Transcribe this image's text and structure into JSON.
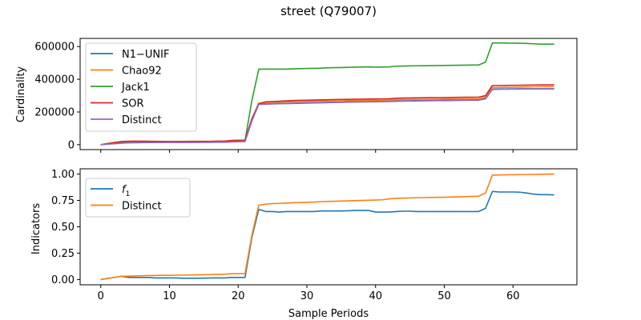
{
  "chart_data": [
    {
      "type": "line",
      "title": "street (Q79007)",
      "xlabel": "",
      "ylabel": "Cardinality",
      "xlim": [
        -3,
        69.3
      ],
      "ylim": [
        -30000,
        650000
      ],
      "xticks": [
        0,
        10,
        20,
        30,
        40,
        50,
        60
      ],
      "yticks": [
        0,
        200000,
        400000,
        600000
      ],
      "ytick_labels": [
        "0",
        "200000",
        "400000",
        "600000"
      ],
      "legend_position": "upper left",
      "series": [
        {
          "name": "N1−UNIF",
          "color": "#1f77b4",
          "x": [
            0,
            1,
            2,
            3,
            4,
            5,
            6,
            7,
            8,
            9,
            10,
            11,
            12,
            13,
            14,
            15,
            16,
            17,
            18,
            19,
            20,
            21,
            22,
            23,
            24,
            25,
            26,
            27,
            28,
            29,
            30,
            31,
            32,
            33,
            34,
            35,
            36,
            37,
            38,
            39,
            40,
            41,
            42,
            43,
            44,
            45,
            46,
            47,
            48,
            49,
            50,
            51,
            52,
            53,
            54,
            55,
            56,
            57,
            58,
            59,
            60,
            61,
            62,
            63,
            64,
            65,
            66
          ],
          "values": [
            0,
            4000,
            8000,
            12000,
            14000,
            15000,
            15500,
            15700,
            15900,
            16000,
            16100,
            16200,
            16300,
            16400,
            16500,
            16600,
            17000,
            17500,
            18000,
            20000,
            21000,
            22000,
            150000,
            248000,
            250000,
            251000,
            252000,
            253000,
            254000,
            255000,
            256000,
            257000,
            258000,
            259000,
            260000,
            261000,
            262000,
            263000,
            263500,
            264000,
            264500,
            265000,
            266000,
            267000,
            268000,
            269000,
            270000,
            270500,
            271000,
            271500,
            272000,
            272500,
            273000,
            273500,
            274000,
            274500,
            282000,
            340000,
            341000,
            341000,
            341500,
            342000,
            342000,
            342000,
            342000,
            342000,
            342000
          ]
        },
        {
          "name": "Chao92",
          "color": "#ff7f0e",
          "x": [
            0,
            1,
            2,
            3,
            4,
            5,
            6,
            7,
            8,
            9,
            10,
            11,
            12,
            13,
            14,
            15,
            16,
            17,
            18,
            19,
            20,
            21,
            22,
            23,
            24,
            25,
            26,
            27,
            28,
            29,
            30,
            31,
            32,
            33,
            34,
            35,
            36,
            37,
            38,
            39,
            40,
            41,
            42,
            43,
            44,
            45,
            46,
            47,
            48,
            49,
            50,
            51,
            52,
            53,
            54,
            55,
            56,
            57,
            58,
            59,
            60,
            61,
            62,
            63,
            64,
            65,
            66
          ],
          "values": [
            0,
            5000,
            10000,
            15000,
            17000,
            18000,
            18000,
            17500,
            17000,
            16800,
            16800,
            16900,
            17000,
            17000,
            17100,
            17200,
            17500,
            18000,
            18500,
            21000,
            22000,
            23000,
            155000,
            255000,
            258000,
            260000,
            261000,
            262000,
            263000,
            264000,
            265000,
            266000,
            267000,
            268000,
            268500,
            269000,
            269500,
            270000,
            270500,
            271000,
            271500,
            272000,
            274000,
            275000,
            276000,
            276500,
            277000,
            277500,
            278000,
            278500,
            279000,
            279500,
            280000,
            280500,
            281000,
            281500,
            290000,
            350000,
            350000,
            350500,
            351000,
            352000,
            353000,
            354000,
            355000,
            355000,
            355000
          ]
        },
        {
          "name": "Jack1",
          "color": "#2ca02c",
          "x": [
            0,
            1,
            2,
            3,
            4,
            5,
            6,
            7,
            8,
            9,
            10,
            11,
            12,
            13,
            14,
            15,
            16,
            17,
            18,
            19,
            20,
            21,
            22,
            23,
            24,
            25,
            26,
            27,
            28,
            29,
            30,
            31,
            32,
            33,
            34,
            35,
            36,
            37,
            38,
            39,
            40,
            41,
            42,
            43,
            44,
            45,
            46,
            47,
            48,
            49,
            50,
            51,
            52,
            53,
            54,
            55,
            56,
            57,
            58,
            59,
            60,
            61,
            62,
            63,
            64,
            65,
            66
          ],
          "values": [
            0,
            6000,
            12000,
            17000,
            19000,
            20000,
            20000,
            19500,
            19000,
            18800,
            18800,
            18900,
            19000,
            19000,
            19100,
            19200,
            19600,
            20000,
            20500,
            24000,
            25000,
            26000,
            270000,
            462000,
            462000,
            462000,
            462000,
            462000,
            464000,
            465000,
            466000,
            467000,
            468000,
            470000,
            471000,
            472000,
            473000,
            474000,
            475000,
            476000,
            474000,
            475000,
            476000,
            480000,
            481000,
            482000,
            482500,
            483000,
            483500,
            484000,
            484500,
            485000,
            486000,
            486500,
            487000,
            487500,
            505000,
            622000,
            622000,
            621500,
            621000,
            620500,
            619000,
            617000,
            615000,
            615000,
            615000
          ]
        },
        {
          "name": "SOR",
          "color": "#d62728",
          "x": [
            0,
            1,
            2,
            3,
            4,
            5,
            6,
            7,
            8,
            9,
            10,
            11,
            12,
            13,
            14,
            15,
            16,
            17,
            18,
            19,
            20,
            21,
            22,
            23,
            24,
            25,
            26,
            27,
            28,
            29,
            30,
            31,
            32,
            33,
            34,
            35,
            36,
            37,
            38,
            39,
            40,
            41,
            42,
            43,
            44,
            45,
            46,
            47,
            48,
            49,
            50,
            51,
            52,
            53,
            54,
            55,
            56,
            57,
            58,
            59,
            60,
            61,
            62,
            63,
            64,
            65,
            66
          ],
          "values": [
            0,
            7000,
            14000,
            19000,
            21000,
            22000,
            21500,
            21000,
            20500,
            20000,
            20000,
            20100,
            20200,
            20300,
            20400,
            20500,
            20800,
            21500,
            22000,
            26000,
            27000,
            28000,
            160000,
            250000,
            262000,
            264000,
            266000,
            268000,
            270000,
            271000,
            272000,
            273000,
            274000,
            275000,
            276000,
            277000,
            277500,
            278000,
            278500,
            279000,
            279500,
            280000,
            281000,
            284000,
            285000,
            286000,
            286500,
            287000,
            287500,
            288000,
            288500,
            289000,
            289500,
            290000,
            290500,
            291000,
            300000,
            362000,
            362000,
            362500,
            363000,
            363500,
            364000,
            365000,
            366000,
            366000,
            366000
          ]
        },
        {
          "name": "Distinct",
          "color": "#9467bd",
          "x": [
            0,
            1,
            2,
            3,
            4,
            5,
            6,
            7,
            8,
            9,
            10,
            11,
            12,
            13,
            14,
            15,
            16,
            17,
            18,
            19,
            20,
            21,
            22,
            23,
            24,
            25,
            26,
            27,
            28,
            29,
            30,
            31,
            32,
            33,
            34,
            35,
            36,
            37,
            38,
            39,
            40,
            41,
            42,
            43,
            44,
            45,
            46,
            47,
            48,
            49,
            50,
            51,
            52,
            53,
            54,
            55,
            56,
            57,
            58,
            59,
            60,
            61,
            62,
            63,
            64,
            65,
            66
          ],
          "values": [
            0,
            3000,
            6000,
            9000,
            11000,
            12000,
            12500,
            13000,
            13200,
            13400,
            13500,
            13600,
            13700,
            13800,
            13900,
            14000,
            14300,
            14700,
            15000,
            17000,
            18000,
            19000,
            145000,
            246000,
            248000,
            249000,
            250000,
            251000,
            252000,
            253000,
            254000,
            255000,
            256000,
            257000,
            258000,
            259000,
            260000,
            261000,
            261500,
            262000,
            262500,
            263000,
            264000,
            265000,
            266000,
            267000,
            267500,
            268000,
            268500,
            269000,
            269500,
            270000,
            270500,
            271000,
            271500,
            272000,
            280000,
            338000,
            339000,
            339500,
            340000,
            340500,
            341000,
            341000,
            341000,
            341000,
            341000
          ]
        }
      ]
    },
    {
      "type": "line",
      "title": "",
      "xlabel": "Sample Periods",
      "ylabel": "Indicators",
      "xlim": [
        -3,
        69.3
      ],
      "ylim": [
        -0.05,
        1.05
      ],
      "xticks": [
        0,
        10,
        20,
        30,
        40,
        50,
        60
      ],
      "xtick_labels": [
        "0",
        "10",
        "20",
        "30",
        "40",
        "50",
        "60"
      ],
      "yticks": [
        0,
        0.25,
        0.5,
        0.75,
        1.0
      ],
      "ytick_labels": [
        "0.00",
        "0.25",
        "0.50",
        "0.75",
        "1.00"
      ],
      "legend_position": "upper left",
      "series": [
        {
          "name": "f1",
          "name_main": "f",
          "name_sub": "1",
          "color": "#1f77b4",
          "x": [
            0,
            1,
            2,
            3,
            4,
            5,
            6,
            7,
            8,
            9,
            10,
            11,
            12,
            13,
            14,
            15,
            16,
            17,
            18,
            19,
            20,
            21,
            22,
            23,
            24,
            25,
            26,
            27,
            28,
            29,
            30,
            31,
            32,
            33,
            34,
            35,
            36,
            37,
            38,
            39,
            40,
            41,
            42,
            43,
            44,
            45,
            46,
            47,
            48,
            49,
            50,
            51,
            52,
            53,
            54,
            55,
            56,
            57,
            58,
            59,
            60,
            61,
            62,
            63,
            64,
            65,
            66
          ],
          "values": [
            0.0,
            0.01,
            0.02,
            0.03,
            0.02,
            0.02,
            0.02,
            0.02,
            0.015,
            0.015,
            0.015,
            0.015,
            0.012,
            0.012,
            0.012,
            0.013,
            0.015,
            0.015,
            0.015,
            0.02,
            0.02,
            0.02,
            0.4,
            0.665,
            0.645,
            0.645,
            0.64,
            0.645,
            0.645,
            0.645,
            0.645,
            0.645,
            0.65,
            0.65,
            0.65,
            0.65,
            0.652,
            0.655,
            0.655,
            0.655,
            0.64,
            0.64,
            0.64,
            0.645,
            0.648,
            0.648,
            0.645,
            0.645,
            0.645,
            0.645,
            0.645,
            0.645,
            0.645,
            0.645,
            0.645,
            0.645,
            0.675,
            0.835,
            0.83,
            0.83,
            0.83,
            0.828,
            0.82,
            0.81,
            0.805,
            0.805,
            0.803
          ]
        },
        {
          "name": "Distinct",
          "color": "#ff7f0e",
          "x": [
            0,
            1,
            2,
            3,
            4,
            5,
            6,
            7,
            8,
            9,
            10,
            11,
            12,
            13,
            14,
            15,
            16,
            17,
            18,
            19,
            20,
            21,
            22,
            23,
            24,
            25,
            26,
            27,
            28,
            29,
            30,
            31,
            32,
            33,
            34,
            35,
            36,
            37,
            38,
            39,
            40,
            41,
            42,
            43,
            44,
            45,
            46,
            47,
            48,
            49,
            50,
            51,
            52,
            53,
            54,
            55,
            56,
            57,
            58,
            59,
            60,
            61,
            62,
            63,
            64,
            65,
            66
          ],
          "values": [
            0.0,
            0.01,
            0.02,
            0.03,
            0.032,
            0.034,
            0.036,
            0.038,
            0.039,
            0.04,
            0.04,
            0.041,
            0.042,
            0.043,
            0.044,
            0.045,
            0.047,
            0.049,
            0.05,
            0.055,
            0.056,
            0.057,
            0.42,
            0.705,
            0.715,
            0.72,
            0.722,
            0.725,
            0.728,
            0.73,
            0.732,
            0.735,
            0.738,
            0.74,
            0.742,
            0.744,
            0.746,
            0.748,
            0.75,
            0.752,
            0.754,
            0.756,
            0.765,
            0.77,
            0.772,
            0.774,
            0.776,
            0.777,
            0.778,
            0.779,
            0.78,
            0.782,
            0.784,
            0.786,
            0.788,
            0.79,
            0.82,
            0.99,
            0.992,
            0.993,
            0.994,
            0.995,
            0.996,
            0.997,
            0.998,
            0.999,
            1.0
          ]
        }
      ]
    }
  ]
}
